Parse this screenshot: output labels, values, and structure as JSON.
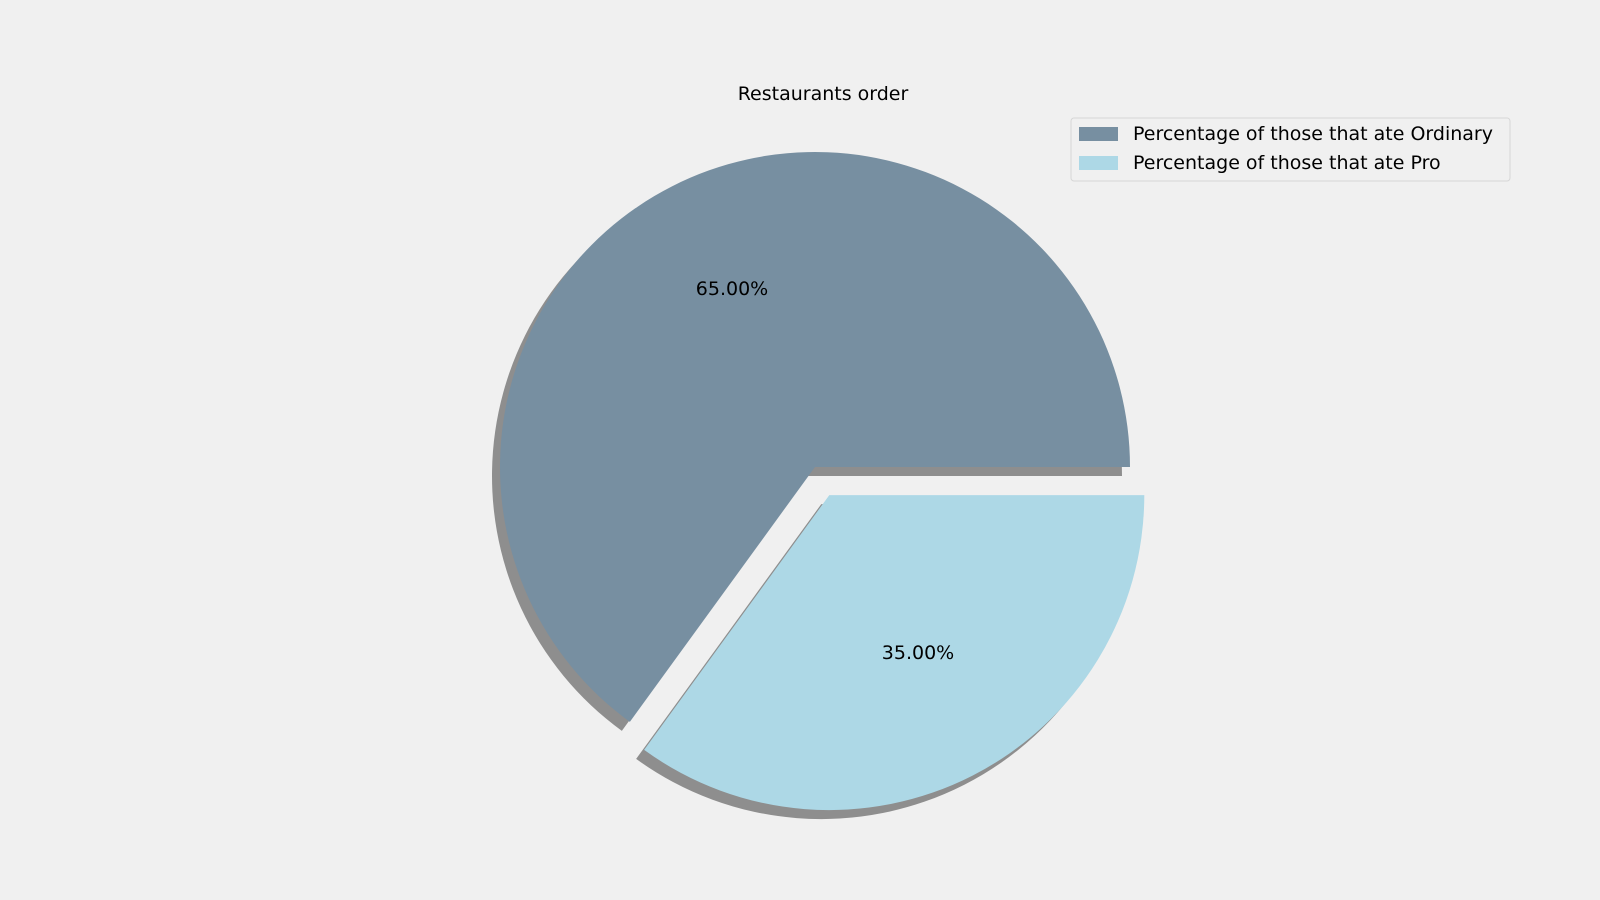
{
  "chart_data": {
    "type": "pie",
    "title": "Restaurants order",
    "slices": [
      {
        "label": "Percentage of those that ate Ordinary",
        "value": 65,
        "pct_label": "65.00%",
        "color": "#778fa1",
        "explode": 0
      },
      {
        "label": "Percentage of those that ate Pro",
        "value": 35,
        "pct_label": "35.00%",
        "color": "#add8e6",
        "explode": 0.1
      }
    ],
    "start_angle": 0,
    "direction": "counterclockwise",
    "shadow": true,
    "shadow_color": "#8e8e8e",
    "legend_position": "top-right"
  }
}
